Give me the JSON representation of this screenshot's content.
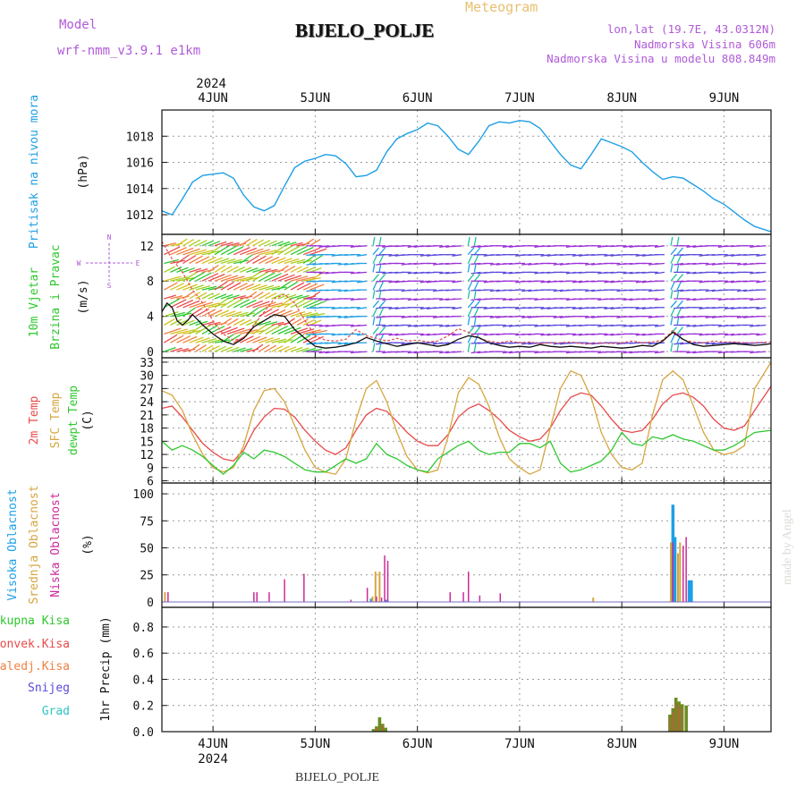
{
  "header": {
    "model_label": "Model",
    "model_name": "wrf-nmm_v3.9.1 e1km",
    "title": "BIJELO_POLJE",
    "meteogram": "Meteogram",
    "lonlat": "lon,lat (19.7E, 43.0312N)",
    "elevation": "Nadmorska Visina 606m",
    "model_elevation": "Nadmorska Visina u modelu 808.849m"
  },
  "footer": {
    "station": "BIJELO_POLJE",
    "credit": "made by Angel"
  },
  "colors": {
    "pressure": "#1e9fe6",
    "t2m": "#e84a4a",
    "sfc": "#d6a640",
    "dewpt": "#2ec82e",
    "high_cloud": "#1e9fe6",
    "mid_cloud": "#d6a640",
    "low_cloud": "#cc2a9c",
    "total_precip": "#6b8e23",
    "conv_precip": "#e84a4a",
    "frozen": "#f08040",
    "snow": "#5a4adc",
    "graupel": "#2ec4c4",
    "wind_speed": "#111111",
    "gust": "#e84a4a"
  },
  "time_axis": {
    "top_year": "2024",
    "bottom_year": "2024",
    "day_labels": [
      "4JUN",
      "5JUN",
      "6JUN",
      "7JUN",
      "8JUN",
      "9JUN"
    ],
    "day_positions": [
      4,
      5,
      6,
      7,
      8,
      9
    ],
    "range": [
      3.5,
      9.46
    ]
  },
  "chart_data": [
    {
      "type": "line",
      "panel": "pressure",
      "ylabel": [
        "Pritisak na nivou mora",
        "(hPa)"
      ],
      "ylim": [
        1010.5,
        1020
      ],
      "yticks": [
        1012,
        1014,
        1016,
        1018
      ],
      "grid": true,
      "series": [
        {
          "name": "Pritisak na nivou mora",
          "x": [
            3.5,
            3.6,
            3.7,
            3.8,
            3.9,
            4.0,
            4.1,
            4.2,
            4.3,
            4.4,
            4.5,
            4.6,
            4.7,
            4.8,
            4.9,
            5.0,
            5.1,
            5.2,
            5.3,
            5.4,
            5.5,
            5.6,
            5.7,
            5.8,
            5.9,
            6.0,
            6.1,
            6.2,
            6.3,
            6.4,
            6.5,
            6.6,
            6.7,
            6.8,
            6.9,
            7.0,
            7.1,
            7.2,
            7.3,
            7.4,
            7.5,
            7.6,
            7.7,
            7.8,
            7.9,
            8.0,
            8.1,
            8.2,
            8.3,
            8.4,
            8.5,
            8.6,
            8.7,
            8.8,
            8.9,
            9.0,
            9.1,
            9.2,
            9.3,
            9.46
          ],
          "values": [
            1012.3,
            1012.0,
            1013.2,
            1014.5,
            1015.0,
            1015.1,
            1015.2,
            1014.8,
            1013.5,
            1012.6,
            1012.3,
            1012.7,
            1014.2,
            1015.6,
            1016.1,
            1016.3,
            1016.6,
            1016.5,
            1015.9,
            1014.9,
            1015.0,
            1015.4,
            1016.8,
            1017.8,
            1018.2,
            1018.5,
            1019.0,
            1018.8,
            1018.0,
            1017.0,
            1016.6,
            1017.6,
            1018.8,
            1019.1,
            1019.0,
            1019.2,
            1019.1,
            1018.6,
            1017.6,
            1016.6,
            1015.8,
            1015.5,
            1016.6,
            1017.8,
            1017.5,
            1017.2,
            1016.8,
            1016.0,
            1015.3,
            1014.7,
            1014.9,
            1014.8,
            1014.3,
            1013.8,
            1013.2,
            1012.8,
            1012.2,
            1011.6,
            1011.1,
            1010.7
          ]
        }
      ]
    },
    {
      "type": "line",
      "panel": "wind",
      "ylabel": [
        "10m Vjetar",
        "Brzina i Pravac",
        "(m/s)"
      ],
      "direction_legend": [
        "N",
        "S",
        "W",
        "E"
      ],
      "ylim": [
        -0.7,
        13.3
      ],
      "yticks": [
        0,
        4,
        8,
        12
      ],
      "grid": true,
      "series": [
        {
          "name": "10m Vjetar",
          "x": [
            3.5,
            3.55,
            3.6,
            3.65,
            3.7,
            3.75,
            3.8,
            3.9,
            4.0,
            4.1,
            4.2,
            4.3,
            4.4,
            4.5,
            4.6,
            4.7,
            4.8,
            4.9,
            5.0,
            5.1,
            5.2,
            5.3,
            5.4,
            5.5,
            5.6,
            5.7,
            5.8,
            5.9,
            6.0,
            6.1,
            6.2,
            6.3,
            6.4,
            6.5,
            6.6,
            6.7,
            6.8,
            6.9,
            7.0,
            7.1,
            7.2,
            7.3,
            7.4,
            7.5,
            7.6,
            7.7,
            7.8,
            7.9,
            8.0,
            8.1,
            8.2,
            8.3,
            8.4,
            8.5,
            8.6,
            8.7,
            8.8,
            8.9,
            9.0,
            9.1,
            9.2,
            9.3,
            9.4,
            9.46
          ],
          "values": [
            4.5,
            5.5,
            5.0,
            3.5,
            3.0,
            3.5,
            4.2,
            3.0,
            2.0,
            1.2,
            0.8,
            1.5,
            2.8,
            3.5,
            4.2,
            4.0,
            2.5,
            1.5,
            0.6,
            0.4,
            0.5,
            0.7,
            1.0,
            1.6,
            1.2,
            0.9,
            0.6,
            0.8,
            1.0,
            0.8,
            0.6,
            0.8,
            1.4,
            1.8,
            1.6,
            1.0,
            0.7,
            0.5,
            0.6,
            0.5,
            0.8,
            0.6,
            0.5,
            0.6,
            0.5,
            0.4,
            0.6,
            0.5,
            0.4,
            0.5,
            0.7,
            0.6,
            1.2,
            2.2,
            1.4,
            0.8,
            0.6,
            0.7,
            0.8,
            0.9,
            0.8,
            0.7,
            0.8,
            0.9
          ]
        },
        {
          "name": "gust",
          "x": [
            3.5,
            3.6,
            3.7,
            3.8,
            3.9,
            4.0,
            4.1,
            4.2,
            4.3,
            4.4,
            4.5,
            4.6,
            4.7,
            4.8,
            4.9,
            5.0,
            5.1,
            5.2,
            5.3,
            5.4,
            5.5,
            5.6,
            5.7,
            5.8,
            5.9,
            6.0,
            6.1,
            6.2,
            6.3,
            6.4,
            6.5,
            6.6,
            6.7,
            6.8,
            6.9,
            7.0,
            7.1,
            7.2,
            7.3,
            7.4,
            7.5,
            7.6,
            7.7,
            7.8,
            7.9,
            8.0,
            8.1,
            8.2,
            8.3,
            8.4,
            8.5,
            8.6,
            8.7,
            8.8,
            8.9,
            9.0,
            9.1,
            9.2,
            9.3,
            9.46
          ],
          "values": [
            12.5,
            10.5,
            9.0,
            7.0,
            5.5,
            3.5,
            2.0,
            1.3,
            1.5,
            3.0,
            4.5,
            6.0,
            6.5,
            5.5,
            3.5,
            1.8,
            1.3,
            1.2,
            1.4,
            2.5,
            1.8,
            1.5,
            1.2,
            1.5,
            1.2,
            1.3,
            1.1,
            1.2,
            1.8,
            2.6,
            2.2,
            1.5,
            1.2,
            1.0,
            1.2,
            1.0,
            1.1,
            0.9,
            1.0,
            1.0,
            1.1,
            0.9,
            0.9,
            1.0,
            0.9,
            1.0,
            1.2,
            1.0,
            1.1,
            1.3,
            2.4,
            1.3,
            1.1,
            1.0,
            1.2,
            1.1,
            1.1,
            1.0,
            1.0,
            1.1
          ]
        }
      ]
    },
    {
      "type": "line",
      "panel": "temperature",
      "ylabel": [
        "2m Temp",
        "SFC Temp",
        "dewpt Temp",
        "(C)"
      ],
      "ylim": [
        5.5,
        34
      ],
      "yticks": [
        6,
        9,
        12,
        15,
        18,
        21,
        24,
        27,
        30,
        33
      ],
      "grid": true,
      "series": [
        {
          "name": "2m Temp",
          "x": [
            3.5,
            3.6,
            3.7,
            3.8,
            3.9,
            4.0,
            4.1,
            4.2,
            4.3,
            4.4,
            4.5,
            4.6,
            4.7,
            4.8,
            4.9,
            5.0,
            5.1,
            5.2,
            5.3,
            5.4,
            5.5,
            5.6,
            5.7,
            5.8,
            5.9,
            6.0,
            6.1,
            6.2,
            6.3,
            6.4,
            6.5,
            6.6,
            6.7,
            6.8,
            6.9,
            7.0,
            7.1,
            7.2,
            7.3,
            7.4,
            7.5,
            7.6,
            7.7,
            7.8,
            7.9,
            8.0,
            8.1,
            8.2,
            8.3,
            8.4,
            8.5,
            8.6,
            8.7,
            8.8,
            8.9,
            9.0,
            9.1,
            9.2,
            9.3,
            9.46
          ],
          "values": [
            22.5,
            23.0,
            20.5,
            17.5,
            14.5,
            12.5,
            11.0,
            10.5,
            13.0,
            17.5,
            20.5,
            22.5,
            22.3,
            20.5,
            17.5,
            15.0,
            13.0,
            12.0,
            13.5,
            17.5,
            21.0,
            22.5,
            21.8,
            19.5,
            17.0,
            15.0,
            14.0,
            14.0,
            16.5,
            20.5,
            22.5,
            23.5,
            22.0,
            20.0,
            17.5,
            16.0,
            15.0,
            15.5,
            18.0,
            22.0,
            25.0,
            26.0,
            25.5,
            23.0,
            20.0,
            17.5,
            17.0,
            17.5,
            20.0,
            23.5,
            25.5,
            26.0,
            25.0,
            23.0,
            20.0,
            18.0,
            17.5,
            18.5,
            22.0,
            27.5
          ]
        },
        {
          "name": "SFC Temp",
          "x": [
            3.5,
            3.6,
            3.7,
            3.8,
            3.9,
            4.0,
            4.1,
            4.2,
            4.3,
            4.4,
            4.5,
            4.6,
            4.7,
            4.8,
            4.9,
            5.0,
            5.1,
            5.2,
            5.3,
            5.4,
            5.5,
            5.6,
            5.7,
            5.8,
            5.9,
            6.0,
            6.1,
            6.2,
            6.3,
            6.4,
            6.5,
            6.6,
            6.7,
            6.8,
            6.9,
            7.0,
            7.1,
            7.2,
            7.3,
            7.4,
            7.5,
            7.6,
            7.7,
            7.8,
            7.9,
            8.0,
            8.1,
            8.2,
            8.3,
            8.4,
            8.5,
            8.6,
            8.7,
            8.8,
            8.9,
            9.0,
            9.1,
            9.2,
            9.3,
            9.46
          ],
          "values": [
            26.5,
            25.5,
            22.0,
            16.5,
            12.0,
            9.0,
            8.0,
            9.0,
            14.0,
            22.0,
            26.5,
            27.0,
            24.0,
            18.5,
            13.0,
            9.0,
            8.0,
            7.5,
            11.0,
            20.0,
            27.0,
            28.8,
            24.0,
            17.0,
            11.5,
            8.5,
            7.8,
            8.5,
            16.0,
            26.0,
            29.5,
            28.0,
            23.0,
            16.0,
            11.0,
            9.0,
            7.5,
            8.5,
            18.0,
            27.0,
            31.0,
            30.0,
            25.0,
            17.0,
            12.0,
            9.0,
            8.5,
            10.0,
            21.0,
            29.0,
            31.0,
            29.0,
            23.0,
            17.0,
            13.0,
            12.0,
            12.5,
            14.0,
            27.0,
            33.0
          ]
        },
        {
          "name": "dewpt Temp",
          "x": [
            3.5,
            3.6,
            3.7,
            3.8,
            3.9,
            4.0,
            4.1,
            4.2,
            4.3,
            4.4,
            4.5,
            4.6,
            4.7,
            4.8,
            4.9,
            5.0,
            5.1,
            5.2,
            5.3,
            5.4,
            5.5,
            5.6,
            5.7,
            5.8,
            5.9,
            6.0,
            6.1,
            6.2,
            6.3,
            6.4,
            6.5,
            6.6,
            6.7,
            6.8,
            6.9,
            7.0,
            7.1,
            7.2,
            7.3,
            7.4,
            7.5,
            7.6,
            7.7,
            7.8,
            7.9,
            8.0,
            8.1,
            8.2,
            8.3,
            8.4,
            8.5,
            8.6,
            8.7,
            8.8,
            8.9,
            9.0,
            9.1,
            9.2,
            9.3,
            9.46
          ],
          "values": [
            15.0,
            13.0,
            14.0,
            13.0,
            11.5,
            9.5,
            7.5,
            9.5,
            12.5,
            11.0,
            13.0,
            12.5,
            11.5,
            10.0,
            8.5,
            8.0,
            8.0,
            9.5,
            11.0,
            10.0,
            11.0,
            14.5,
            12.0,
            11.0,
            9.5,
            8.5,
            8.0,
            11.0,
            12.5,
            14.0,
            15.0,
            13.0,
            12.0,
            12.5,
            12.5,
            14.5,
            14.5,
            13.5,
            15.0,
            10.0,
            8.0,
            8.5,
            9.5,
            10.5,
            13.0,
            17.0,
            14.5,
            14.0,
            16.0,
            15.5,
            16.5,
            15.5,
            15.0,
            14.0,
            13.0,
            13.0,
            14.0,
            15.5,
            17.0,
            17.5
          ]
        }
      ]
    },
    {
      "type": "bar",
      "panel": "cloud",
      "ylabel": [
        "Visoka Oblacnost",
        "Srednja Oblacnost",
        "Niska Oblacnost",
        "(%)"
      ],
      "ylim": [
        -5,
        110
      ],
      "yticks": [
        0,
        25,
        50,
        75,
        100
      ],
      "grid": true,
      "series": [
        {
          "name": "Visoka Oblacnost",
          "x": [
            5.55,
            5.7,
            8.5,
            8.52,
            8.66,
            8.68
          ],
          "values": [
            3,
            2,
            90,
            60,
            20,
            20
          ]
        },
        {
          "name": "Srednja Oblacnost",
          "x": [
            3.53,
            5.56,
            5.59,
            5.63,
            7.72,
            8.48,
            8.55,
            8.57
          ],
          "values": [
            9,
            5,
            28,
            28,
            4,
            55,
            45,
            55
          ]
        },
        {
          "name": "Niska Oblacnost",
          "x": [
            3.56,
            4.4,
            4.43,
            4.55,
            4.7,
            4.89,
            5.35,
            5.51,
            5.6,
            5.65,
            5.68,
            5.71,
            6.32,
            6.45,
            6.5,
            6.61,
            6.81,
            8.5,
            8.6,
            8.63
          ],
          "values": [
            9,
            9,
            9,
            9,
            21,
            26,
            2,
            13,
            5,
            4,
            43,
            38,
            9,
            9,
            28,
            6,
            8,
            55,
            52,
            60
          ]
        }
      ]
    },
    {
      "type": "bar",
      "panel": "precip",
      "ylabel": [
        "Ukupna Kisa",
        "Konvek.Kisa",
        "Zaledj.Kisa",
        "Snijeg",
        "Grad",
        "1hr Precip (mm)"
      ],
      "ylim": [
        0,
        0.95
      ],
      "yticks": [
        0,
        0.2,
        0.4,
        0.6,
        0.8
      ],
      "grid": true,
      "series": [
        {
          "name": "Ukupna Kisa",
          "x": [
            5.57,
            5.6,
            5.63,
            5.66,
            5.69,
            8.47,
            8.5,
            8.53,
            8.56,
            8.59,
            8.63
          ],
          "values": [
            0.02,
            0.04,
            0.11,
            0.06,
            0.03,
            0.13,
            0.18,
            0.26,
            0.23,
            0.21,
            0.2
          ]
        },
        {
          "name": "Konvek.Kisa",
          "x": [
            5.6,
            5.66,
            8.47,
            8.5,
            8.53,
            8.56,
            8.59
          ],
          "values": [
            0.03,
            0.05,
            0.11,
            0.15,
            0.22,
            0.2,
            0.18
          ]
        },
        {
          "name": "Zaledj.Kisa",
          "x": [],
          "values": []
        },
        {
          "name": "Snijeg",
          "x": [],
          "values": []
        },
        {
          "name": "Grad",
          "x": [],
          "values": []
        }
      ]
    }
  ]
}
